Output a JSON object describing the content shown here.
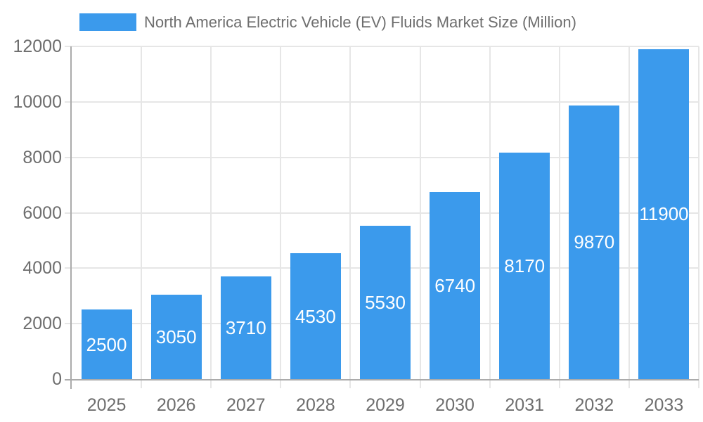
{
  "chart_data": {
    "type": "bar",
    "title": "North America Electric Vehicle (EV) Fluids Market Size (Million)",
    "categories": [
      "2025",
      "2026",
      "2027",
      "2028",
      "2029",
      "2030",
      "2031",
      "2032",
      "2033"
    ],
    "values": [
      2500,
      3050,
      3710,
      4530,
      5530,
      6740,
      8170,
      9870,
      11900
    ],
    "y_ticks": [
      0,
      2000,
      4000,
      6000,
      8000,
      10000,
      12000
    ],
    "ylim": [
      0,
      12000
    ],
    "xlabel": "",
    "ylabel": "",
    "legend_position": "top",
    "grid": true,
    "bar_label_color": "#ffffff",
    "colors": {
      "bar": "#3b9aec",
      "grid": "#e6e6e6",
      "axis": "#ababab",
      "tick_text": "#6e6e6e",
      "background": "#ffffff"
    }
  }
}
